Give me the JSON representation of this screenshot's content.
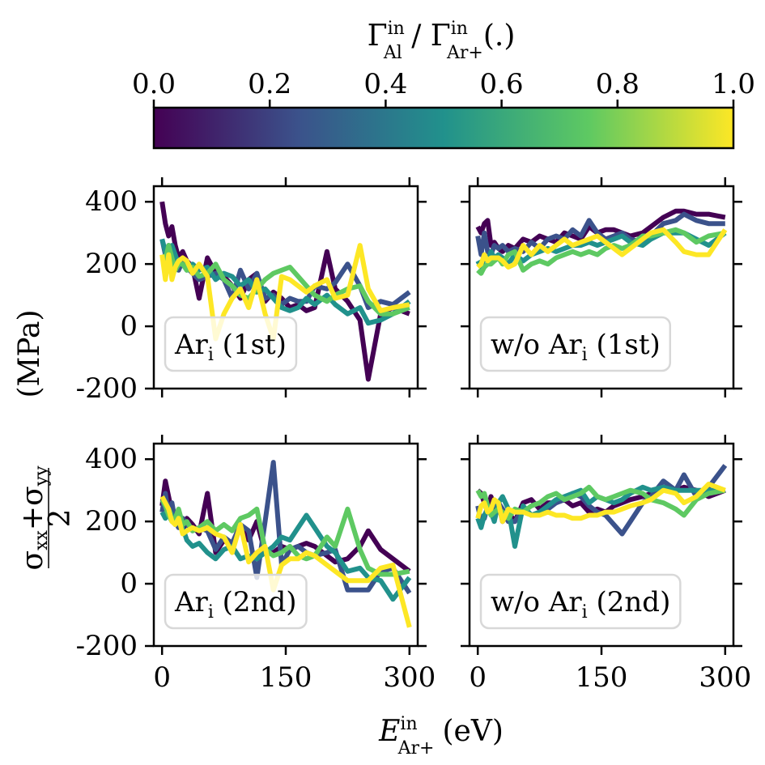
{
  "colorbar": {
    "label_parts": [
      "Γ",
      "in",
      "Al",
      " / Γ",
      "in",
      "Ar+",
      "(.)"
    ],
    "ticks": [
      "0.0",
      "0.2",
      "0.4",
      "0.6",
      "0.8",
      "1.0"
    ],
    "tick_values": [
      0.0,
      0.2,
      0.4,
      0.6,
      0.8,
      1.0
    ],
    "range": [
      0.0,
      1.0
    ],
    "colormap": "viridis",
    "colormap_stops": [
      "#440154",
      "#3b528b",
      "#21918c",
      "#5ec962",
      "#fde725"
    ]
  },
  "ylabel": {
    "frac_num": "σ",
    "num_sub1": "xx",
    "plus": "+σ",
    "num_sub2": "yy",
    "frac_den": "2",
    "unit": "(MPa)"
  },
  "xlabel": {
    "symbol": "E",
    "sup": "in",
    "sub": "Ar+",
    "unit": "(eV)"
  },
  "colors": {
    "c0": "#440154",
    "c1": "#3b528b",
    "c2": "#21918c",
    "c3": "#5ec962",
    "c4": "#fde725"
  },
  "chart_data": [
    {
      "type": "line",
      "panel_label": {
        "text": "Ar",
        "sub": "i",
        "suffix": " (1st)"
      },
      "xlim": [
        -10,
        310
      ],
      "ylim": [
        -200,
        450
      ],
      "xticks": [
        0,
        150,
        300
      ],
      "yticks": [
        -200,
        0,
        200,
        400
      ],
      "x": [
        0,
        4,
        8,
        12,
        16,
        20,
        25,
        30,
        37,
        45,
        55,
        65,
        75,
        85,
        95,
        105,
        115,
        125,
        135,
        145,
        155,
        165,
        175,
        185,
        200,
        210,
        225,
        240,
        250,
        265,
        280,
        300
      ],
      "series": [
        {
          "color": "c0",
          "values": [
            400,
            330,
            290,
            320,
            260,
            220,
            240,
            210,
            190,
            90,
            220,
            170,
            160,
            130,
            90,
            150,
            170,
            80,
            110,
            90,
            60,
            70,
            50,
            60,
            240,
            120,
            80,
            20,
            -170,
            40,
            60,
            40
          ]
        },
        {
          "color": "c1",
          "values": [
            280,
            230,
            260,
            220,
            190,
            180,
            210,
            190,
            170,
            150,
            160,
            170,
            150,
            90,
            180,
            120,
            170,
            90,
            100,
            70,
            90,
            80,
            80,
            130,
            120,
            140,
            200,
            130,
            60,
            80,
            70,
            110
          ]
        },
        {
          "color": "c2",
          "values": [
            280,
            240,
            210,
            260,
            230,
            200,
            200,
            180,
            200,
            180,
            190,
            150,
            170,
            160,
            130,
            150,
            110,
            120,
            90,
            60,
            50,
            60,
            90,
            70,
            100,
            70,
            40,
            60,
            10,
            20,
            40,
            80
          ]
        },
        {
          "color": "c3",
          "values": [
            230,
            210,
            260,
            220,
            180,
            200,
            200,
            180,
            190,
            160,
            170,
            200,
            150,
            130,
            100,
            90,
            120,
            150,
            170,
            180,
            190,
            160,
            130,
            100,
            80,
            100,
            120,
            130,
            80,
            40,
            40,
            60
          ]
        },
        {
          "color": "c4",
          "values": [
            230,
            150,
            230,
            150,
            190,
            210,
            220,
            210,
            170,
            200,
            160,
            -40,
            40,
            90,
            120,
            60,
            150,
            40,
            -40,
            160,
            150,
            130,
            110,
            130,
            150,
            90,
            100,
            260,
            120,
            50,
            60,
            70
          ]
        }
      ]
    },
    {
      "type": "line",
      "panel_label": {
        "text": "w/o Ar",
        "sub": "i",
        "suffix": " (1st)"
      },
      "xlim": [
        -10,
        310
      ],
      "ylim": [
        -200,
        450
      ],
      "xticks": [
        0,
        150,
        300
      ],
      "yticks": [
        -200,
        0,
        200,
        400
      ],
      "x": [
        0,
        4,
        8,
        12,
        16,
        20,
        25,
        30,
        37,
        45,
        55,
        65,
        75,
        85,
        95,
        105,
        115,
        125,
        135,
        145,
        155,
        165,
        175,
        185,
        200,
        210,
        225,
        240,
        250,
        265,
        280,
        300
      ],
      "series": [
        {
          "color": "c0",
          "values": [
            320,
            300,
            330,
            340,
            260,
            270,
            250,
            240,
            260,
            250,
            280,
            270,
            290,
            280,
            270,
            300,
            290,
            280,
            320,
            300,
            310,
            310,
            300,
            290,
            300,
            320,
            350,
            370,
            370,
            360,
            360,
            350
          ]
        },
        {
          "color": "c1",
          "values": [
            290,
            230,
            300,
            240,
            230,
            260,
            250,
            260,
            240,
            250,
            240,
            270,
            250,
            280,
            290,
            280,
            310,
            290,
            340,
            300,
            280,
            290,
            300,
            280,
            270,
            290,
            330,
            340,
            360,
            340,
            330,
            330
          ]
        },
        {
          "color": "c2",
          "values": [
            210,
            190,
            220,
            210,
            240,
            220,
            230,
            220,
            200,
            230,
            210,
            230,
            240,
            250,
            240,
            250,
            260,
            260,
            270,
            260,
            270,
            280,
            290,
            270,
            260,
            280,
            300,
            300,
            300,
            280,
            260,
            300
          ]
        },
        {
          "color": "c3",
          "values": [
            180,
            170,
            190,
            200,
            200,
            210,
            220,
            200,
            230,
            240,
            180,
            200,
            210,
            200,
            220,
            230,
            240,
            230,
            240,
            230,
            250,
            260,
            250,
            260,
            290,
            290,
            300,
            310,
            300,
            270,
            290,
            300
          ]
        },
        {
          "color": "c4",
          "values": [
            190,
            200,
            230,
            210,
            220,
            220,
            220,
            210,
            190,
            200,
            260,
            230,
            260,
            240,
            260,
            280,
            260,
            270,
            280,
            290,
            270,
            250,
            230,
            250,
            280,
            300,
            310,
            270,
            240,
            230,
            230,
            310
          ]
        }
      ]
    },
    {
      "type": "line",
      "panel_label": {
        "text": "Ar",
        "sub": "i",
        "suffix": " (2nd)"
      },
      "xlim": [
        -10,
        310
      ],
      "ylim": [
        -200,
        450
      ],
      "xticks": [
        0,
        150,
        300
      ],
      "yticks": [
        -200,
        0,
        200,
        400
      ],
      "x": [
        0,
        4,
        8,
        12,
        16,
        20,
        25,
        30,
        37,
        45,
        55,
        65,
        75,
        85,
        95,
        105,
        115,
        125,
        135,
        145,
        155,
        165,
        175,
        185,
        200,
        210,
        225,
        240,
        250,
        265,
        280,
        300
      ],
      "series": [
        {
          "color": "c0",
          "values": [
            250,
            330,
            280,
            230,
            220,
            200,
            170,
            210,
            190,
            160,
            290,
            100,
            140,
            120,
            180,
            140,
            200,
            100,
            100,
            120,
            110,
            120,
            130,
            120,
            90,
            70,
            80,
            120,
            170,
            110,
            80,
            40
          ]
        },
        {
          "color": "c1",
          "values": [
            230,
            290,
            220,
            260,
            200,
            180,
            210,
            190,
            170,
            180,
            170,
            110,
            150,
            130,
            190,
            170,
            20,
            200,
            390,
            60,
            110,
            120,
            100,
            90,
            100,
            110,
            -20,
            -20,
            -20,
            40,
            50,
            -30
          ]
        },
        {
          "color": "c2",
          "values": [
            230,
            210,
            240,
            220,
            190,
            200,
            180,
            140,
            120,
            130,
            100,
            80,
            110,
            120,
            80,
            90,
            80,
            100,
            120,
            150,
            140,
            180,
            220,
            180,
            120,
            100,
            40,
            50,
            20,
            10,
            -50,
            20
          ]
        },
        {
          "color": "c3",
          "values": [
            270,
            250,
            220,
            200,
            210,
            240,
            190,
            200,
            170,
            180,
            200,
            170,
            190,
            170,
            210,
            220,
            240,
            110,
            90,
            100,
            120,
            90,
            80,
            90,
            150,
            120,
            240,
            110,
            50,
            30,
            30,
            40
          ]
        },
        {
          "color": "c4",
          "values": [
            280,
            260,
            240,
            200,
            190,
            210,
            160,
            170,
            180,
            170,
            180,
            160,
            150,
            100,
            190,
            70,
            100,
            120,
            -20,
            60,
            80,
            80,
            100,
            90,
            60,
            40,
            10,
            10,
            10,
            50,
            60,
            -140
          ]
        }
      ]
    },
    {
      "type": "line",
      "panel_label": {
        "text": "w/o Ar",
        "sub": "i",
        "suffix": " (2nd)"
      },
      "xlim": [
        -10,
        310
      ],
      "ylim": [
        -200,
        450
      ],
      "xticks": [
        0,
        150,
        300
      ],
      "yticks": [
        -200,
        0,
        200,
        400
      ],
      "x": [
        0,
        4,
        8,
        12,
        16,
        20,
        25,
        30,
        37,
        45,
        55,
        65,
        75,
        85,
        95,
        105,
        115,
        125,
        135,
        145,
        155,
        165,
        175,
        185,
        200,
        210,
        225,
        240,
        250,
        265,
        280,
        300
      ],
      "series": [
        {
          "color": "c0",
          "values": [
            300,
            290,
            260,
            230,
            280,
            250,
            260,
            200,
            230,
            200,
            260,
            270,
            240,
            260,
            260,
            270,
            250,
            260,
            230,
            240,
            230,
            250,
            260,
            270,
            280,
            290,
            310,
            300,
            310,
            300,
            280,
            300
          ]
        },
        {
          "color": "c1",
          "values": [
            250,
            200,
            210,
            250,
            230,
            240,
            260,
            240,
            200,
            200,
            240,
            220,
            230,
            240,
            260,
            270,
            290,
            280,
            250,
            230,
            220,
            190,
            160,
            200,
            260,
            280,
            330,
            300,
            350,
            280,
            310,
            380
          ]
        },
        {
          "color": "c2",
          "values": [
            210,
            180,
            220,
            240,
            230,
            200,
            260,
            280,
            240,
            120,
            250,
            220,
            230,
            250,
            270,
            280,
            290,
            300,
            260,
            280,
            270,
            260,
            270,
            290,
            310,
            300,
            310,
            300,
            300,
            300,
            300,
            300
          ]
        },
        {
          "color": "c3",
          "values": [
            300,
            280,
            290,
            250,
            220,
            230,
            240,
            230,
            210,
            240,
            230,
            250,
            260,
            280,
            290,
            270,
            280,
            290,
            310,
            280,
            270,
            280,
            290,
            300,
            290,
            270,
            260,
            240,
            220,
            270,
            290,
            300
          ]
        },
        {
          "color": "c4",
          "values": [
            210,
            250,
            260,
            230,
            240,
            270,
            260,
            200,
            240,
            230,
            230,
            220,
            220,
            230,
            220,
            220,
            210,
            210,
            220,
            220,
            230,
            230,
            240,
            250,
            260,
            270,
            300,
            290,
            260,
            280,
            320,
            300
          ]
        }
      ]
    }
  ]
}
